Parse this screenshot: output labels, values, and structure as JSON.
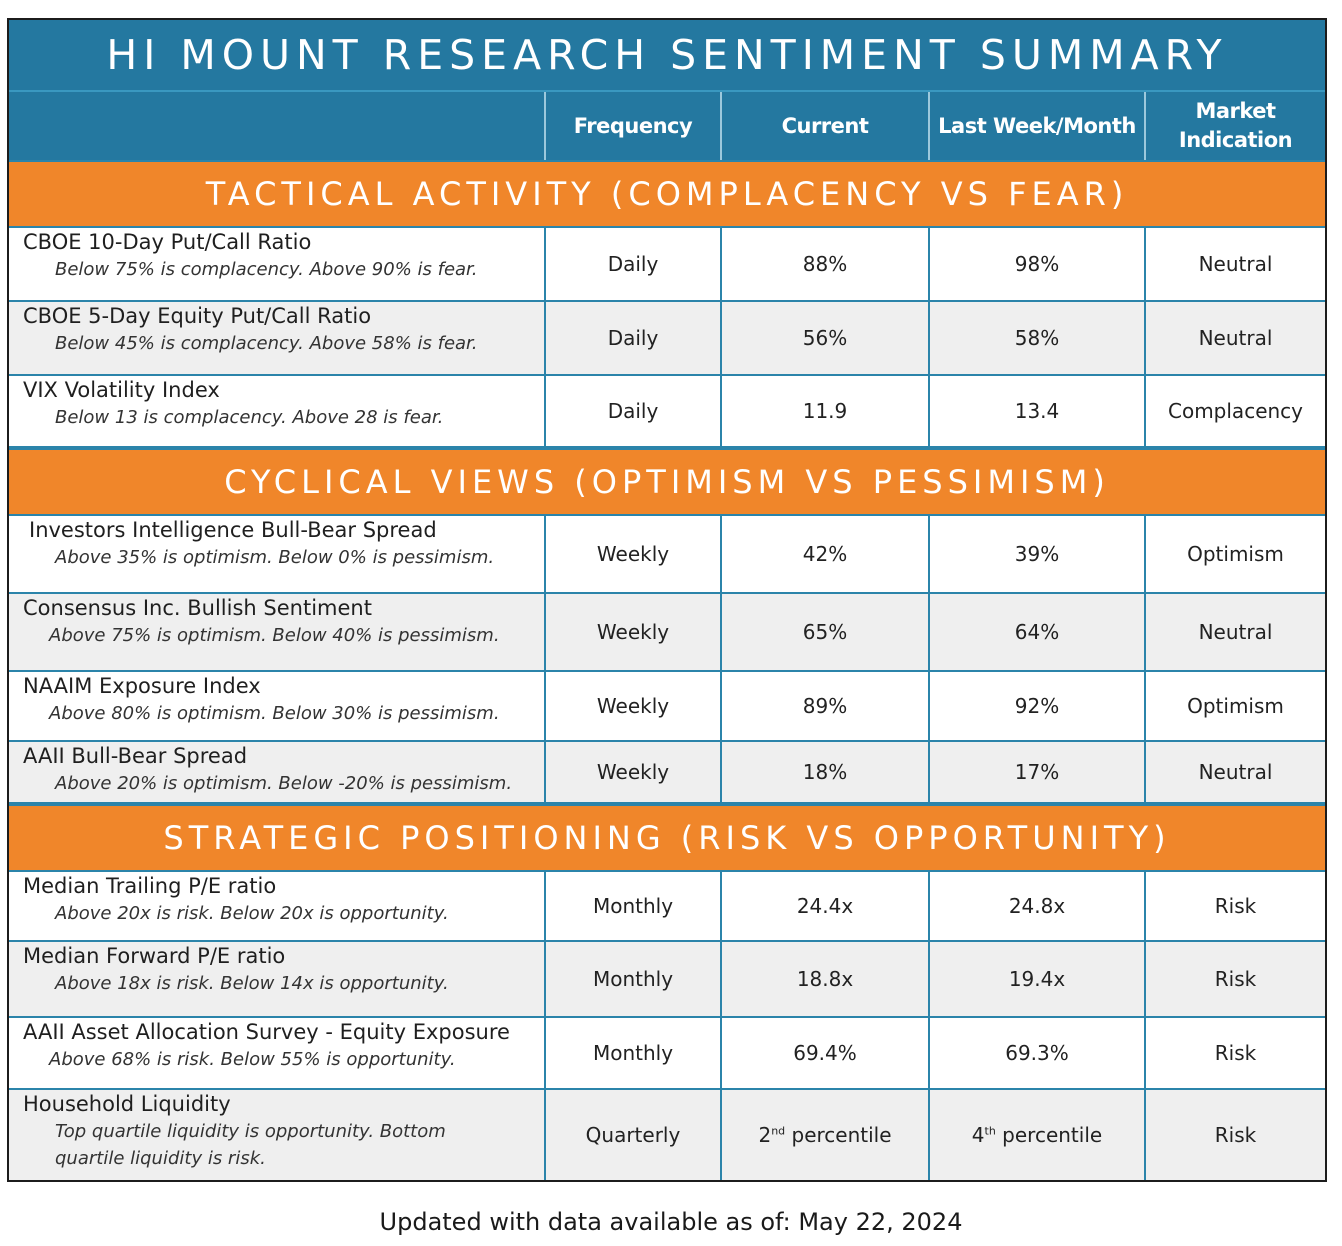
{
  "title": "HI MOUNT RESEARCH SENTIMENT SUMMARY",
  "columns": {
    "frequency": "Frequency",
    "current": "Current",
    "last": "Last Week/Month",
    "indication": "Market Indication"
  },
  "sections": [
    {
      "title": "TACTICAL ACTIVITY (COMPLACENCY VS FEAR)",
      "rows": [
        {
          "name": "CBOE 10-Day Put/Call Ratio",
          "desc": "Below 75% is complacency. Above 90% is fear.",
          "frequency": "Daily",
          "current": "88%",
          "last": "98%",
          "indication": "Neutral"
        },
        {
          "name": "CBOE 5-Day Equity Put/Call Ratio",
          "desc": "Below 45% is complacency. Above 58% is fear.",
          "frequency": "Daily",
          "current": "56%",
          "last": "58%",
          "indication": "Neutral"
        },
        {
          "name": "VIX Volatility Index",
          "desc": "Below 13 is complacency. Above 28 is fear.",
          "frequency": "Daily",
          "current": "11.9",
          "last": "13.4",
          "indication": "Complacency"
        }
      ]
    },
    {
      "title": "CYCLICAL VIEWS (OPTIMISM VS PESSIMISM)",
      "rows": [
        {
          "name": "Investors Intelligence Bull-Bear Spread",
          "desc": "Above 35% is optimism. Below 0% is pessimism.",
          "frequency": "Weekly",
          "current": "42%",
          "last": "39%",
          "indication": "Optimism"
        },
        {
          "name": "Consensus Inc. Bullish Sentiment",
          "desc": "Above 75% is optimism. Below 40% is pessimism.",
          "frequency": "Weekly",
          "current": "65%",
          "last": "64%",
          "indication": "Neutral"
        },
        {
          "name": "NAAIM Exposure Index",
          "desc": "Above 80% is optimism. Below 30% is pessimism.",
          "frequency": "Weekly",
          "current": "89%",
          "last": "92%",
          "indication": "Optimism"
        },
        {
          "name": "AAII Bull-Bear Spread",
          "desc": "Above 20% is optimism. Below -20% is pessimism.",
          "frequency": "Weekly",
          "current": "18%",
          "last": "17%",
          "indication": "Neutral"
        }
      ]
    },
    {
      "title": "STRATEGIC POSITIONING (RISK VS OPPORTUNITY)",
      "rows": [
        {
          "name": "Median Trailing P/E ratio",
          "desc": "Above 20x is risk. Below 20x is opportunity.",
          "frequency": "Monthly",
          "current": "24.4x",
          "last": "24.8x",
          "indication": "Risk"
        },
        {
          "name": "Median Forward P/E ratio",
          "desc": "Above 18x is risk. Below 14x is opportunity.",
          "frequency": "Monthly",
          "current": "18.8x",
          "last": "19.4x",
          "indication": "Risk"
        },
        {
          "name": "AAII Asset Allocation Survey - Equity Exposure",
          "desc": "Above 68% is risk. Below 55% is opportunity.",
          "frequency": "Monthly",
          "current": "69.4%",
          "last": "69.3%",
          "indication": "Risk"
        },
        {
          "name": "Household Liquidity",
          "desc": "Top quartile liquidity is opportunity. Bottom quartile liquidity is risk.",
          "frequency": "Quarterly",
          "current_num": "2",
          "current_sup": "nd",
          "current_rest": " percentile",
          "last_num": "4",
          "last_sup": "th",
          "last_rest": " percentile",
          "indication": "Risk"
        }
      ]
    }
  ],
  "footer": "Updated with data available as of: May 22, 2024",
  "colors": {
    "header_blue": "#2478a0",
    "section_orange": "#f0862a",
    "grid_blue": "#2b84aa"
  }
}
